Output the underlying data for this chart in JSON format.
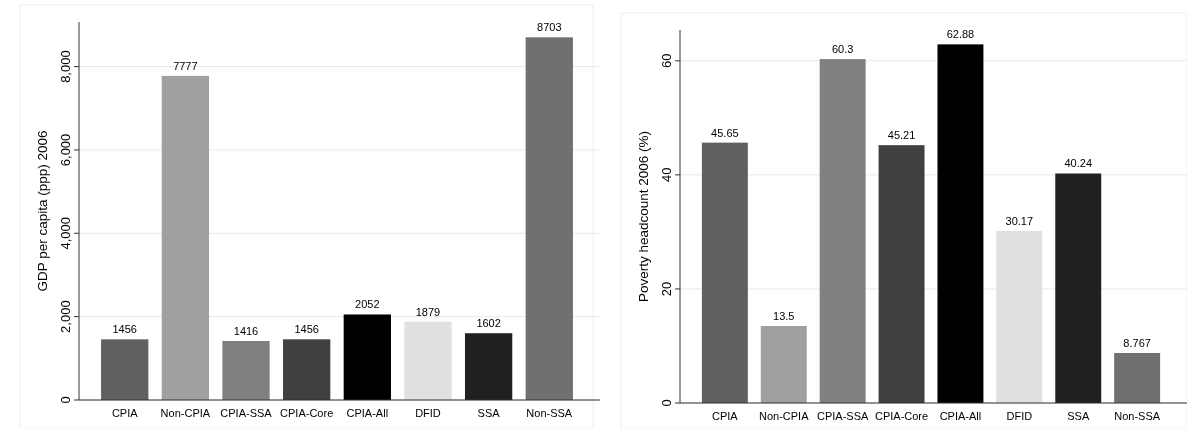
{
  "chart_data": [
    {
      "type": "bar",
      "ylabel": "GDP per capita (ppp) 2006",
      "categories": [
        "CPIA",
        "Non-CPIA",
        "CPIA-SSA",
        "CPIA-Core",
        "CPIA-All",
        "DFID",
        "SSA",
        "Non-SSA"
      ],
      "values": [
        1456,
        7777,
        1416,
        1456,
        2052,
        1879,
        1602,
        8703
      ],
      "colors": [
        "#606060",
        "#a0a0a0",
        "#808080",
        "#404040",
        "#000000",
        "#e0e0e0",
        "#202020",
        "#707070"
      ],
      "ylim": [
        0,
        9070
      ],
      "yticks": [
        0,
        {
          "value": 2000,
          "label": "2,000"
        },
        {
          "value": 4000,
          "label": "4,000"
        },
        {
          "value": 6000,
          "label": "6,000"
        },
        {
          "value": 8000,
          "label": "8,000"
        }
      ],
      "grid": "y",
      "data_labels": true
    },
    {
      "type": "bar",
      "ylabel": "Poverty headcount 2006 (%)",
      "categories": [
        "CPIA",
        "Non-CPIA",
        "CPIA-SSA",
        "CPIA-Core",
        "CPIA-All",
        "DFID",
        "SSA",
        "Non-SSA"
      ],
      "values": [
        45.65,
        13.5,
        60.3,
        45.21,
        62.88,
        30.17,
        40.24,
        8.767
      ],
      "colors": [
        "#606060",
        "#a0a0a0",
        "#808080",
        "#404040",
        "#000000",
        "#e0e0e0",
        "#202020",
        "#707070"
      ],
      "ylim": [
        0,
        65.4
      ],
      "yticks": [
        0,
        20,
        40,
        60
      ],
      "grid": "y",
      "data_labels": true
    }
  ]
}
